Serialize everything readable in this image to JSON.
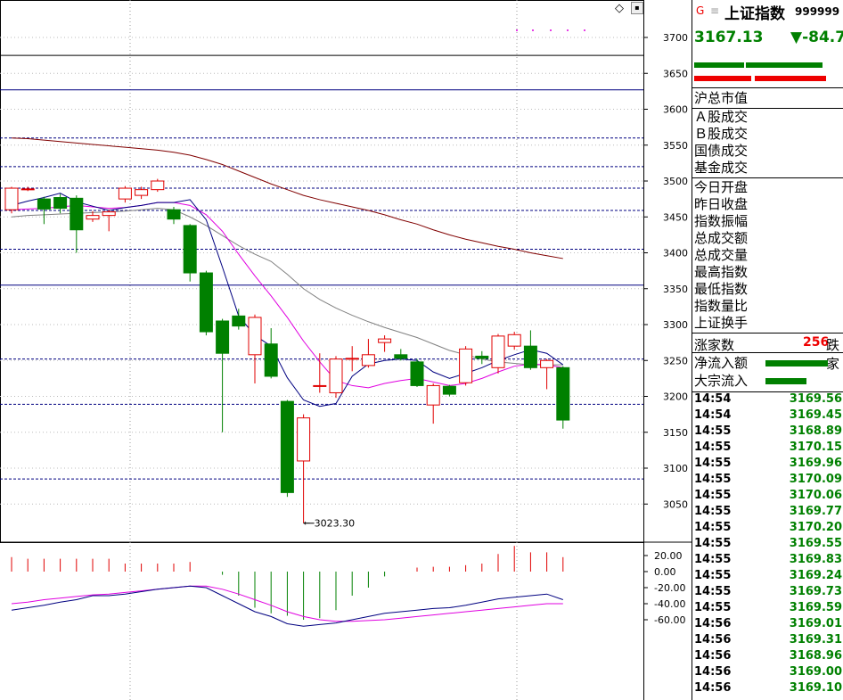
{
  "header": {
    "icon_g": "G",
    "icon_lines": "≡",
    "index_name": "上证指数",
    "index_code": "999999"
  },
  "quote": {
    "price": "3167.13",
    "change": "▼-84.7"
  },
  "labels": {
    "market_total": "沪总市值",
    "a_trade": "Ａ股成交",
    "b_trade": "Ｂ股成交",
    "bond_trade": "国债成交",
    "fund_trade": "基金成交",
    "today_open": "今日开盘",
    "prev_close": "昨日收盘",
    "amplitude": "指数振幅",
    "total_amount": "总成交额",
    "total_volume": "总成交量",
    "high": "最高指数",
    "low": "最低指数",
    "vol_ratio": "指数量比",
    "turnover": "上证换手",
    "up_count_label": "涨家数",
    "up_count_value": "256",
    "down_count_label": "跌家",
    "net_inflow": "净流入额",
    "block_inflow": "大宗流入"
  },
  "ticks": [
    {
      "time": "14:54",
      "price": "3169.56"
    },
    {
      "time": "14:54",
      "price": "3169.45"
    },
    {
      "time": "14:55",
      "price": "3168.89"
    },
    {
      "time": "14:55",
      "price": "3170.15"
    },
    {
      "time": "14:55",
      "price": "3169.96"
    },
    {
      "time": "14:55",
      "price": "3170.09"
    },
    {
      "time": "14:55",
      "price": "3170.06"
    },
    {
      "time": "14:55",
      "price": "3169.77"
    },
    {
      "time": "14:55",
      "price": "3170.20"
    },
    {
      "time": "14:55",
      "price": "3169.55"
    },
    {
      "time": "14:55",
      "price": "3169.83"
    },
    {
      "time": "14:55",
      "price": "3169.24"
    },
    {
      "time": "14:55",
      "price": "3169.73"
    },
    {
      "time": "14:55",
      "price": "3169.59"
    },
    {
      "time": "14:56",
      "price": "3169.01"
    },
    {
      "time": "14:56",
      "price": "3169.31"
    },
    {
      "time": "14:56",
      "price": "3168.96"
    },
    {
      "time": "14:56",
      "price": "3169.00"
    },
    {
      "time": "14:56",
      "price": "3169.10"
    }
  ],
  "colors": {
    "up": "#e00000",
    "down": "#008000",
    "ma5": "#000080",
    "ma10": "#e000e0",
    "ma20": "#808080",
    "ma60": "#800000",
    "hline_solid": "#000080",
    "hline_dash": "#000080"
  },
  "chart_data": {
    "type": "candlestick",
    "y_ticks": [
      "3700",
      "3650",
      "3600",
      "3550",
      "3500",
      "3450",
      "3400",
      "3350",
      "3300",
      "3250",
      "3200",
      "3150",
      "3100",
      "3050"
    ],
    "ylim": [
      3000,
      3730
    ],
    "low_annotation": "3023.30",
    "candles": [
      {
        "o": 3460,
        "c": 3490,
        "h": 3492,
        "l": 3455
      },
      {
        "o": 3488,
        "c": 3489,
        "h": 3492,
        "l": 3486
      },
      {
        "o": 3475,
        "c": 3461,
        "h": 3478,
        "l": 3440
      },
      {
        "o": 3477,
        "c": 3462,
        "h": 3482,
        "l": 3455
      },
      {
        "o": 3476,
        "c": 3432,
        "h": 3480,
        "l": 3400
      },
      {
        "o": 3447,
        "c": 3452,
        "h": 3458,
        "l": 3443
      },
      {
        "o": 3452,
        "c": 3457,
        "h": 3460,
        "l": 3430
      },
      {
        "o": 3475,
        "c": 3490,
        "h": 3493,
        "l": 3470
      },
      {
        "o": 3480,
        "c": 3488,
        "h": 3492,
        "l": 3475
      },
      {
        "o": 3488,
        "c": 3500,
        "h": 3503,
        "l": 3485
      },
      {
        "o": 3460,
        "c": 3447,
        "h": 3464,
        "l": 3440
      },
      {
        "o": 3438,
        "c": 3372,
        "h": 3440,
        "l": 3360
      },
      {
        "o": 3372,
        "c": 3290,
        "h": 3375,
        "l": 3285
      },
      {
        "o": 3305,
        "c": 3260,
        "h": 3308,
        "l": 3150
      },
      {
        "o": 3312,
        "c": 3298,
        "h": 3322,
        "l": 3293
      },
      {
        "o": 3258,
        "c": 3310,
        "h": 3314,
        "l": 3218
      },
      {
        "o": 3273,
        "c": 3228,
        "h": 3295,
        "l": 3225
      },
      {
        "o": 3193,
        "c": 3066,
        "h": 3195,
        "l": 3060
      },
      {
        "o": 3110,
        "c": 3170,
        "h": 3175,
        "l": 3023.3
      },
      {
        "o": 3214,
        "c": 3215,
        "h": 3260,
        "l": 3205
      },
      {
        "o": 3205,
        "c": 3252,
        "h": 3256,
        "l": 3198
      },
      {
        "o": 3252,
        "c": 3253,
        "h": 3270,
        "l": 3235
      },
      {
        "o": 3243,
        "c": 3258,
        "h": 3280,
        "l": 3240
      },
      {
        "o": 3275,
        "c": 3280,
        "h": 3285,
        "l": 3262
      },
      {
        "o": 3258,
        "c": 3253,
        "h": 3266,
        "l": 3250
      },
      {
        "o": 3248,
        "c": 3215,
        "h": 3252,
        "l": 3213
      },
      {
        "o": 3188,
        "c": 3215,
        "h": 3218,
        "l": 3162
      },
      {
        "o": 3214,
        "c": 3203,
        "h": 3216,
        "l": 3200
      },
      {
        "o": 3219,
        "c": 3266,
        "h": 3270,
        "l": 3215
      },
      {
        "o": 3256,
        "c": 3253,
        "h": 3263,
        "l": 3245
      },
      {
        "o": 3240,
        "c": 3284,
        "h": 3287,
        "l": 3232
      },
      {
        "o": 3270,
        "c": 3286,
        "h": 3290,
        "l": 3265
      },
      {
        "o": 3270,
        "c": 3240,
        "h": 3292,
        "l": 3237
      },
      {
        "o": 3240,
        "c": 3250,
        "h": 3252,
        "l": 3210
      },
      {
        "o": 3240,
        "c": 3167,
        "h": 3242,
        "l": 3155
      }
    ],
    "ma5": [
      3466,
      3472,
      3477,
      3483,
      3471,
      3465,
      3459,
      3463,
      3466,
      3470,
      3470,
      3474,
      3446,
      3380,
      3312,
      3285,
      3270,
      3226,
      3195,
      3186,
      3190,
      3228,
      3245,
      3250,
      3252,
      3250,
      3234,
      3225,
      3232,
      3240,
      3250,
      3258,
      3265,
      3260,
      3244
    ],
    "ma10": [
      3460,
      3461,
      3462,
      3464,
      3466,
      3464,
      3462,
      3463,
      3466,
      3470,
      3470,
      3466,
      3453,
      3430,
      3398,
      3368,
      3340,
      3310,
      3277,
      3248,
      3222,
      3215,
      3212,
      3218,
      3222,
      3225,
      3220,
      3215,
      3218,
      3225,
      3234,
      3242,
      3245,
      3244,
      3240
    ],
    "ma20": [
      3450,
      3452,
      3453,
      3454,
      3455,
      3456,
      3457,
      3458,
      3460,
      3462,
      3460,
      3450,
      3438,
      3424,
      3410,
      3398,
      3388,
      3370,
      3350,
      3335,
      3323,
      3313,
      3304,
      3296,
      3289,
      3282,
      3273,
      3264,
      3258,
      3252,
      3248,
      3246,
      3244,
      3244,
      3244
    ],
    "ma60": [
      3560,
      3559,
      3557,
      3555,
      3553,
      3551,
      3549,
      3547,
      3545,
      3543,
      3540,
      3536,
      3530,
      3523,
      3514,
      3505,
      3496,
      3488,
      3480,
      3474,
      3469,
      3464,
      3459,
      3453,
      3446,
      3440,
      3432,
      3425,
      3419,
      3414,
      3409,
      3405,
      3400,
      3396,
      3392
    ],
    "hlines_solid": [
      3675,
      3627,
      3355
    ],
    "hlines_dash": [
      3560,
      3520,
      3490,
      3459,
      3405,
      3252,
      3189,
      3085
    ],
    "macd": {
      "y_ticks": [
        "20.00",
        "0.00",
        "-20.00",
        "-40.00",
        "-60.00"
      ],
      "ylim": [
        -72,
        32
      ],
      "bars": [
        18,
        16,
        16,
        16,
        16,
        16,
        16,
        10,
        10,
        10,
        10,
        12,
        0,
        -4,
        -30,
        -45,
        -52,
        -55,
        -60,
        -58,
        -48,
        -30,
        -20,
        -6,
        0,
        5,
        6,
        6,
        8,
        10,
        22,
        32,
        24,
        24,
        18
      ],
      "dif": [
        -48,
        -45,
        -42,
        -38,
        -35,
        -30,
        -30,
        -28,
        -25,
        -22,
        -20,
        -18,
        -20,
        -30,
        -40,
        -50,
        -56,
        -65,
        -68,
        -66,
        -64,
        -60,
        -56,
        -52,
        -50,
        -48,
        -46,
        -45,
        -42,
        -38,
        -34,
        -32,
        -30,
        -28,
        -35
      ],
      "dea": [
        -40,
        -38,
        -35,
        -33,
        -31,
        -29,
        -28,
        -26,
        -24,
        -22,
        -20,
        -18,
        -18,
        -22,
        -28,
        -35,
        -42,
        -50,
        -56,
        -60,
        -62,
        -62,
        -61,
        -60,
        -58,
        -56,
        -54,
        -52,
        -50,
        -48,
        -46,
        -44,
        -42,
        -40,
        -40
      ]
    }
  }
}
